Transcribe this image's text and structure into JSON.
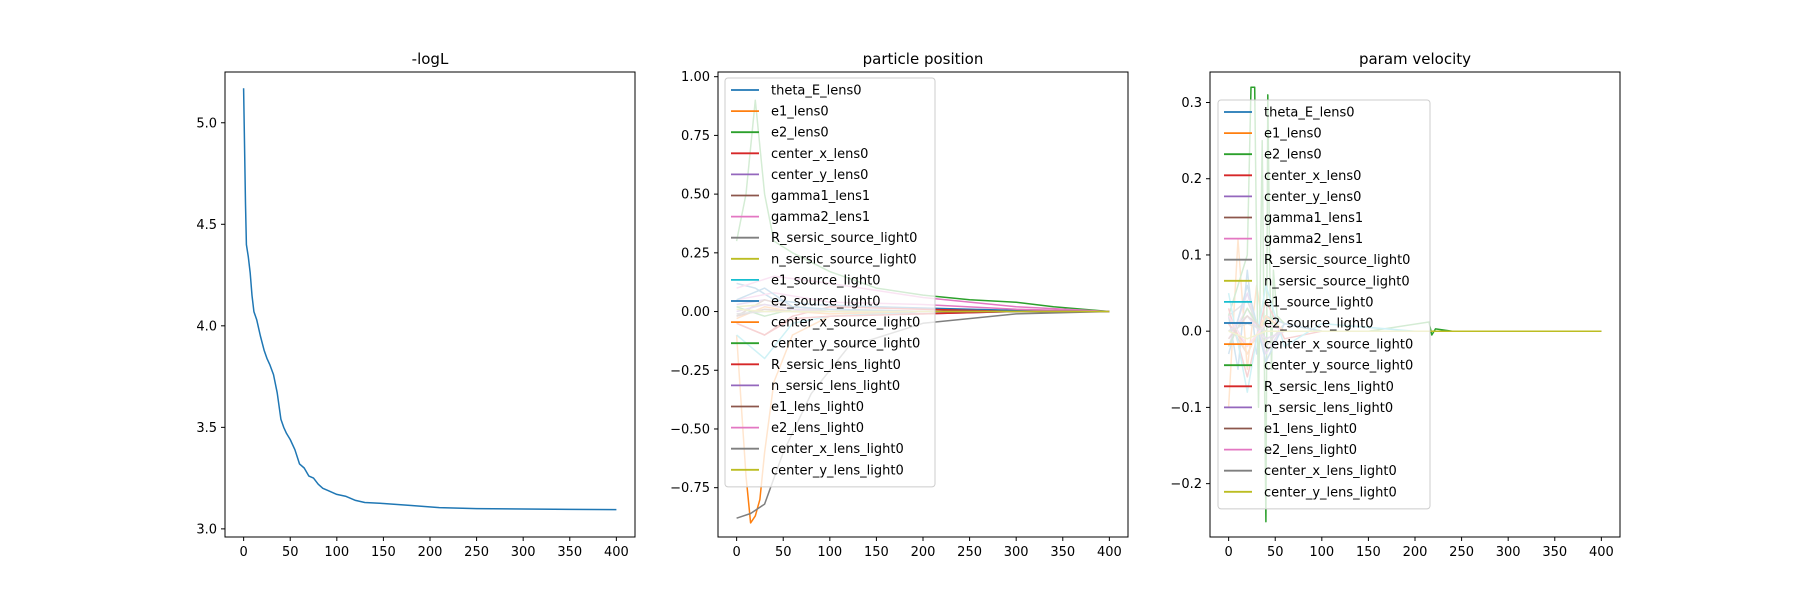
{
  "colors": {
    "palette": [
      "#1f77b4",
      "#ff7f0e",
      "#2ca02c",
      "#d62728",
      "#9467bd",
      "#8c564b",
      "#e377c2",
      "#7f7f7f",
      "#bcbd22",
      "#17becf"
    ],
    "axes": "#000000",
    "background": "#ffffff"
  },
  "chart_data": [
    {
      "type": "line",
      "title": "-logL",
      "xlabel": "",
      "ylabel": "",
      "xlim": [
        -20,
        420
      ],
      "ylim": [
        2.96,
        5.25
      ],
      "xticks": [
        0,
        50,
        100,
        150,
        200,
        250,
        300,
        350,
        400
      ],
      "yticks": [
        3.0,
        3.5,
        4.0,
        4.5,
        5.0
      ],
      "ytick_labels": [
        "3.0",
        "3.5",
        "4.0",
        "4.5",
        "5.0"
      ],
      "grid": false,
      "series": [
        {
          "x": [
            0,
            2,
            3,
            5,
            7,
            9,
            11,
            14,
            18,
            22,
            25,
            28,
            32,
            36,
            40,
            43,
            46,
            50,
            55,
            60,
            65,
            70,
            75,
            80,
            85,
            90,
            100,
            110,
            120,
            130,
            150,
            180,
            210,
            250,
            300,
            350,
            400
          ],
          "values": [
            5.17,
            4.6,
            4.4,
            4.34,
            4.26,
            4.15,
            4.07,
            4.03,
            3.95,
            3.88,
            3.84,
            3.81,
            3.76,
            3.67,
            3.54,
            3.5,
            3.47,
            3.44,
            3.39,
            3.32,
            3.3,
            3.26,
            3.25,
            3.22,
            3.2,
            3.19,
            3.17,
            3.16,
            3.14,
            3.13,
            3.125,
            3.115,
            3.105,
            3.1,
            3.098,
            3.096,
            3.095
          ]
        }
      ]
    },
    {
      "type": "line",
      "title": "particle position",
      "xlabel": "",
      "ylabel": "",
      "xlim": [
        -20,
        420
      ],
      "ylim": [
        -0.96,
        1.02
      ],
      "xticks": [
        0,
        50,
        100,
        150,
        200,
        250,
        300,
        350,
        400
      ],
      "yticks": [
        -0.75,
        -0.5,
        -0.25,
        0.0,
        0.25,
        0.5,
        0.75,
        1.0
      ],
      "ytick_labels": [
        "−0.75",
        "−0.50",
        "−0.25",
        "0.00",
        "0.25",
        "0.50",
        "0.75",
        "1.00"
      ],
      "legend_location": "top-left",
      "grid": false,
      "series": [
        {
          "name": "theta_E_lens0",
          "x": [
            0,
            20,
            40,
            80,
            150,
            250,
            350,
            400
          ],
          "values": [
            0.12,
            0.1,
            0.05,
            0.03,
            0.02,
            0.01,
            0.0,
            0.0
          ]
        },
        {
          "name": "e1_lens0",
          "x": [
            0,
            10,
            15,
            20,
            25,
            30,
            40,
            60,
            100,
            200,
            300,
            400
          ],
          "values": [
            -0.1,
            -0.7,
            -0.9,
            -0.87,
            -0.8,
            -0.6,
            -0.3,
            -0.1,
            -0.02,
            0.0,
            0.0,
            0.0
          ]
        },
        {
          "name": "e2_lens0",
          "x": [
            0,
            10,
            20,
            30,
            40,
            60,
            100,
            150,
            200,
            250,
            300,
            340,
            400
          ],
          "values": [
            0.3,
            0.5,
            0.9,
            0.5,
            0.3,
            0.25,
            0.17,
            0.1,
            0.07,
            0.05,
            0.04,
            0.02,
            0.0
          ]
        },
        {
          "name": "center_x_lens0",
          "x": [
            0,
            30,
            60,
            100,
            200,
            300,
            400
          ],
          "values": [
            -0.05,
            -0.1,
            -0.02,
            0.02,
            0.01,
            0.0,
            0.0
          ]
        },
        {
          "name": "center_y_lens0",
          "x": [
            0,
            30,
            60,
            100,
            200,
            300,
            400
          ],
          "values": [
            0.03,
            0.05,
            0.02,
            0.0,
            -0.01,
            0.0,
            0.0
          ]
        },
        {
          "name": "gamma1_lens1",
          "x": [
            0,
            30,
            60,
            100,
            200,
            300,
            400
          ],
          "values": [
            -0.02,
            0.05,
            0.02,
            0.01,
            0.0,
            0.0,
            0.0
          ]
        },
        {
          "name": "gamma2_lens1",
          "x": [
            0,
            40,
            100,
            200,
            300,
            400
          ],
          "values": [
            0.05,
            0.08,
            0.04,
            0.03,
            0.01,
            0.0
          ]
        },
        {
          "name": "R_sersic_source_light0",
          "x": [
            0,
            15,
            30,
            50,
            80,
            120,
            200,
            300,
            400
          ],
          "values": [
            -0.88,
            -0.86,
            -0.82,
            -0.6,
            -0.35,
            -0.15,
            -0.05,
            -0.01,
            0.0
          ]
        },
        {
          "name": "n_sersic_source_light0",
          "x": [
            0,
            30,
            60,
            100,
            200,
            300,
            400
          ],
          "values": [
            0.02,
            0.03,
            0.01,
            0.0,
            0.0,
            0.0,
            0.0
          ]
        },
        {
          "name": "e1_source_light0",
          "x": [
            0,
            30,
            60,
            100,
            200,
            300,
            400
          ],
          "values": [
            -0.1,
            -0.2,
            -0.05,
            -0.02,
            0.0,
            0.0,
            0.0
          ]
        },
        {
          "name": "e2_source_light0",
          "x": [
            0,
            30,
            60,
            100,
            200,
            300,
            400
          ],
          "values": [
            0.05,
            0.1,
            0.02,
            0.01,
            0.0,
            0.0,
            0.0
          ]
        },
        {
          "name": "center_x_source_light0",
          "x": [
            0,
            30,
            60,
            100,
            200,
            300,
            400
          ],
          "values": [
            -0.03,
            0.02,
            0.0,
            -0.01,
            0.0,
            0.0,
            0.0
          ]
        },
        {
          "name": "center_y_source_light0",
          "x": [
            0,
            30,
            60,
            100,
            200,
            300,
            400
          ],
          "values": [
            0.02,
            -0.02,
            0.01,
            0.0,
            0.0,
            0.0,
            0.0
          ]
        },
        {
          "name": "R_sersic_lens_light0",
          "x": [
            0,
            30,
            60,
            100,
            200,
            300,
            400
          ],
          "values": [
            -0.05,
            -0.1,
            -0.03,
            -0.02,
            -0.01,
            0.0,
            0.0
          ]
        },
        {
          "name": "n_sersic_lens_light0",
          "x": [
            0,
            30,
            60,
            100,
            200,
            300,
            400
          ],
          "values": [
            0.0,
            0.03,
            0.01,
            0.0,
            0.0,
            0.0,
            0.0
          ]
        },
        {
          "name": "e1_lens_light0",
          "x": [
            0,
            30,
            60,
            100,
            200,
            300,
            400
          ],
          "values": [
            -0.02,
            0.01,
            0.0,
            0.0,
            0.0,
            0.0,
            0.0
          ]
        },
        {
          "name": "e2_lens_light0",
          "x": [
            0,
            40,
            100,
            200,
            300,
            400
          ],
          "values": [
            0.1,
            0.15,
            0.12,
            0.06,
            0.02,
            0.0
          ]
        },
        {
          "name": "center_x_lens_light0",
          "x": [
            0,
            30,
            60,
            100,
            200,
            300,
            400
          ],
          "values": [
            -0.01,
            0.0,
            0.0,
            0.0,
            0.0,
            0.0,
            0.0
          ]
        },
        {
          "name": "center_y_lens_light0",
          "x": [
            0,
            30,
            60,
            100,
            200,
            300,
            400
          ],
          "values": [
            0.01,
            0.0,
            0.0,
            0.0,
            0.0,
            0.0,
            0.0
          ]
        }
      ]
    },
    {
      "type": "line",
      "title": "param velocity",
      "xlabel": "",
      "ylabel": "",
      "xlim": [
        -20,
        420
      ],
      "ylim": [
        -0.27,
        0.34
      ],
      "xticks": [
        0,
        50,
        100,
        150,
        200,
        250,
        300,
        350,
        400
      ],
      "yticks": [
        -0.2,
        -0.1,
        0.0,
        0.1,
        0.2,
        0.3
      ],
      "ytick_labels": [
        "−0.2",
        "−0.1",
        "0.0",
        "0.1",
        "0.2",
        "0.3"
      ],
      "legend_location": "left",
      "grid": false,
      "series": [
        {
          "name": "theta_E_lens0",
          "x": [
            0,
            10,
            20,
            30,
            40,
            60,
            100,
            200,
            400
          ],
          "values": [
            0.02,
            -0.05,
            0.08,
            -0.03,
            0.02,
            0.01,
            0.0,
            0.0,
            0.0
          ]
        },
        {
          "name": "e1_lens0",
          "x": [
            0,
            10,
            20,
            30,
            40,
            60,
            100,
            200,
            400
          ],
          "values": [
            -0.1,
            0.12,
            -0.05,
            0.06,
            -0.02,
            0.01,
            0.0,
            0.0,
            0.0
          ]
        },
        {
          "name": "e2_lens0",
          "x": [
            0,
            20,
            24,
            28,
            32,
            36,
            40,
            42,
            44,
            46,
            48,
            52,
            60,
            80,
            100,
            150,
            215,
            218,
            222,
            240,
            300,
            400
          ],
          "values": [
            0.02,
            0.1,
            0.32,
            0.32,
            -0.1,
            0.25,
            -0.25,
            0.31,
            0.1,
            -0.05,
            0.08,
            0.02,
            0.01,
            0.005,
            0.0,
            0.0,
            0.012,
            -0.005,
            0.003,
            0.0,
            0.0,
            0.0
          ]
        },
        {
          "name": "center_x_lens0",
          "x": [
            0,
            20,
            40,
            60,
            100,
            200,
            400
          ],
          "values": [
            0.03,
            -0.06,
            0.04,
            -0.01,
            0.0,
            0.0,
            0.0
          ]
        },
        {
          "name": "center_y_lens0",
          "x": [
            0,
            20,
            40,
            60,
            100,
            200,
            400
          ],
          "values": [
            -0.02,
            0.05,
            -0.03,
            0.01,
            0.0,
            0.0,
            0.0
          ]
        },
        {
          "name": "gamma1_lens1",
          "x": [
            0,
            20,
            40,
            60,
            100,
            200,
            400
          ],
          "values": [
            0.01,
            -0.03,
            0.02,
            0.0,
            0.0,
            0.0,
            0.0
          ]
        },
        {
          "name": "gamma2_lens1",
          "x": [
            0,
            20,
            40,
            60,
            100,
            200,
            400
          ],
          "values": [
            -0.01,
            0.03,
            -0.02,
            0.01,
            0.0,
            0.0,
            0.0
          ]
        },
        {
          "name": "R_sersic_source_light0",
          "x": [
            0,
            20,
            40,
            60,
            100,
            200,
            400
          ],
          "values": [
            0.02,
            0.04,
            -0.02,
            0.01,
            0.0,
            0.0,
            0.0
          ]
        },
        {
          "name": "n_sersic_source_light0",
          "x": [
            0,
            20,
            40,
            60,
            100,
            200,
            400
          ],
          "values": [
            0.0,
            0.02,
            -0.01,
            0.0,
            0.0,
            0.0,
            0.0
          ]
        },
        {
          "name": "e1_source_light0",
          "x": [
            0,
            20,
            40,
            60,
            100,
            200,
            400
          ],
          "values": [
            0.05,
            -0.08,
            0.06,
            -0.02,
            0.01,
            0.0,
            0.0
          ]
        },
        {
          "name": "e2_source_light0",
          "x": [
            0,
            20,
            40,
            60,
            100,
            200,
            400
          ],
          "values": [
            -0.03,
            0.06,
            -0.04,
            0.01,
            0.0,
            0.0,
            0.0
          ]
        },
        {
          "name": "center_x_source_light0",
          "x": [
            0,
            20,
            40,
            60,
            100,
            200,
            400
          ],
          "values": [
            0.02,
            -0.03,
            0.02,
            0.0,
            0.0,
            0.0,
            0.0
          ]
        },
        {
          "name": "center_y_source_light0",
          "x": [
            0,
            20,
            40,
            60,
            100,
            200,
            400
          ],
          "values": [
            -0.02,
            0.03,
            -0.01,
            0.0,
            0.0,
            0.0,
            0.0
          ]
        },
        {
          "name": "R_sersic_lens_light0",
          "x": [
            0,
            20,
            40,
            60,
            100,
            200,
            400
          ],
          "values": [
            0.01,
            -0.02,
            0.01,
            0.0,
            0.0,
            0.0,
            0.0
          ]
        },
        {
          "name": "n_sersic_lens_light0",
          "x": [
            0,
            20,
            40,
            60,
            100,
            200,
            400
          ],
          "values": [
            0.0,
            0.02,
            -0.01,
            0.0,
            0.0,
            0.0,
            0.0
          ]
        },
        {
          "name": "e1_lens_light0",
          "x": [
            0,
            20,
            40,
            60,
            100,
            200,
            400
          ],
          "values": [
            -0.01,
            0.02,
            0.0,
            0.0,
            0.0,
            0.0,
            0.0
          ]
        },
        {
          "name": "e2_lens_light0",
          "x": [
            0,
            20,
            40,
            60,
            100,
            200,
            400
          ],
          "values": [
            0.02,
            -0.02,
            0.01,
            0.0,
            0.0,
            0.0,
            0.0
          ]
        },
        {
          "name": "center_x_lens_light0",
          "x": [
            0,
            20,
            40,
            60,
            100,
            200,
            400
          ],
          "values": [
            0.0,
            0.01,
            0.0,
            0.0,
            0.0,
            0.0,
            0.0
          ]
        },
        {
          "name": "center_y_lens_light0",
          "x": [
            0,
            20,
            40,
            60,
            100,
            200,
            400
          ],
          "values": [
            0.0,
            -0.01,
            0.0,
            0.0,
            0.0,
            0.0,
            0.0
          ]
        }
      ]
    }
  ]
}
